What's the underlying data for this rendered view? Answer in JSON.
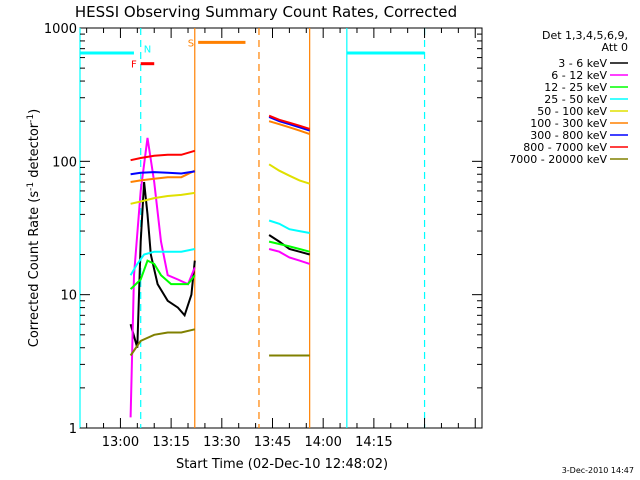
{
  "chart_data": {
    "type": "line",
    "title": "HESSI Observing Summary Count Rates, Corrected",
    "xlabel": "Start Time (02-Dec-10 12:48:02)",
    "ylabel_prefix": "Corrected Count Rate (s",
    "ylabel_sup1": "-1",
    "ylabel_mid": " detector",
    "ylabel_sup2": "-1",
    "ylabel_suffix": ")",
    "y_scale": "log",
    "ylim": [
      1,
      1000
    ],
    "y_ticks": [
      "1",
      "10",
      "100",
      "1000"
    ],
    "x_ticks": [
      "13:00",
      "13:15",
      "13:30",
      "13:45",
      "14:00",
      "14:15"
    ],
    "xlim": [
      "12:48:02",
      "14:47"
    ],
    "grid": false,
    "timestamp": "3-Dec-2010 14:47",
    "legend_header": [
      "Det 1,3,4,5,6,9,",
      "Att 0"
    ],
    "legend_placement": "right",
    "series": [
      {
        "name": "3 - 6 keV",
        "color": "#000000",
        "segments": [
          [
            [
              "13:03",
              6
            ],
            [
              "13:05",
              4
            ],
            [
              "13:06",
              25
            ],
            [
              "13:07",
              70
            ],
            [
              "13:08",
              40
            ],
            [
              "13:09",
              20
            ],
            [
              "13:11",
              12
            ],
            [
              "13:14",
              9
            ],
            [
              "13:17",
              8
            ],
            [
              "13:19",
              7
            ],
            [
              "13:21",
              10
            ],
            [
              "13:22",
              18
            ]
          ],
          [
            [
              "13:44",
              28
            ],
            [
              "13:47",
              25
            ],
            [
              "13:50",
              22
            ],
            [
              "13:53",
              21
            ],
            [
              "13:56",
              20
            ]
          ]
        ]
      },
      {
        "name": "6 - 12 keV",
        "color": "#ff00ff",
        "segments": [
          [
            [
              "13:03",
              1.2
            ],
            [
              "13:04",
              14
            ],
            [
              "13:06",
              60
            ],
            [
              "13:08",
              150
            ],
            [
              "13:10",
              70
            ],
            [
              "13:12",
              25
            ],
            [
              "13:14",
              14
            ],
            [
              "13:17",
              13
            ],
            [
              "13:20",
              12
            ],
            [
              "13:22",
              16
            ]
          ],
          [
            [
              "13:44",
              22
            ],
            [
              "13:47",
              21
            ],
            [
              "13:50",
              19
            ],
            [
              "13:53",
              18
            ],
            [
              "13:56",
              17
            ]
          ]
        ]
      },
      {
        "name": "12 - 25 keV",
        "color": "#00ff00",
        "segments": [
          [
            [
              "13:03",
              11
            ],
            [
              "13:06",
              13
            ],
            [
              "13:08",
              18
            ],
            [
              "13:10",
              17
            ],
            [
              "13:12",
              14
            ],
            [
              "13:15",
              12
            ],
            [
              "13:18",
              12
            ],
            [
              "13:20",
              12
            ],
            [
              "13:22",
              14
            ]
          ],
          [
            [
              "13:44",
              25
            ],
            [
              "13:47",
              24
            ],
            [
              "13:50",
              23
            ],
            [
              "13:53",
              22
            ],
            [
              "13:56",
              21
            ]
          ]
        ]
      },
      {
        "name": "25 - 50 keV",
        "color": "#00ffff",
        "segments": [
          [
            [
              "13:03",
              14
            ],
            [
              "13:05",
              17
            ],
            [
              "13:07",
              20
            ],
            [
              "13:10",
              21
            ],
            [
              "13:14",
              21
            ],
            [
              "13:18",
              21
            ],
            [
              "13:22",
              22
            ]
          ],
          [
            [
              "13:44",
              36
            ],
            [
              "13:47",
              34
            ],
            [
              "13:50",
              31
            ],
            [
              "13:53",
              30
            ],
            [
              "13:56",
              29
            ]
          ]
        ],
        "markers": [
          {
            "y": 650,
            "from": "12:48:02",
            "to": "13:04"
          },
          {
            "y": 650,
            "from": "14:07",
            "to": "14:30"
          }
        ],
        "vlines": [
          {
            "x": "12:48:02",
            "style": "solid"
          },
          {
            "x": "13:06",
            "style": "dashed"
          },
          {
            "x": "14:07",
            "style": "solid"
          },
          {
            "x": "14:30",
            "style": "dashed"
          }
        ]
      },
      {
        "name": "50 - 100 keV",
        "color": "#e0e000",
        "segments": [
          [
            [
              "13:03",
              48
            ],
            [
              "13:06",
              50
            ],
            [
              "13:10",
              53
            ],
            [
              "13:14",
              55
            ],
            [
              "13:18",
              56
            ],
            [
              "13:22",
              58
            ]
          ],
          [
            [
              "13:44",
              95
            ],
            [
              "13:47",
              85
            ],
            [
              "13:50",
              78
            ],
            [
              "13:53",
              72
            ],
            [
              "13:56",
              68
            ]
          ]
        ]
      },
      {
        "name": "100 - 300 keV",
        "color": "#ff8000",
        "segments": [
          [
            [
              "13:03",
              70
            ],
            [
              "13:06",
              72
            ],
            [
              "13:10",
              74
            ],
            [
              "13:14",
              76
            ],
            [
              "13:18",
              76
            ],
            [
              "13:22",
              85
            ]
          ],
          [
            [
              "13:44",
              200
            ],
            [
              "13:47",
              190
            ],
            [
              "13:50",
              180
            ],
            [
              "13:53",
              170
            ],
            [
              "13:56",
              160
            ]
          ]
        ],
        "markers": [
          {
            "y": 780,
            "from": "13:23",
            "to": "13:37",
            "label": "S"
          }
        ],
        "vlines": [
          {
            "x": "13:22",
            "style": "solid"
          },
          {
            "x": "13:41",
            "style": "dashed"
          },
          {
            "x": "13:56",
            "style": "solid"
          }
        ]
      },
      {
        "name": "300 - 800 keV",
        "color": "#0000ff",
        "segments": [
          [
            [
              "13:03",
              80
            ],
            [
              "13:06",
              82
            ],
            [
              "13:10",
              83
            ],
            [
              "13:14",
              82
            ],
            [
              "13:18",
              81
            ],
            [
              "13:22",
              84
            ]
          ],
          [
            [
              "13:44",
              215
            ],
            [
              "13:47",
              200
            ],
            [
              "13:50",
              190
            ],
            [
              "13:53",
              180
            ],
            [
              "13:56",
              170
            ]
          ]
        ]
      },
      {
        "name": "800 - 7000 keV",
        "color": "#ff0000",
        "segments": [
          [
            [
              "13:03",
              102
            ],
            [
              "13:06",
              106
            ],
            [
              "13:10",
              110
            ],
            [
              "13:14",
              112
            ],
            [
              "13:18",
              112
            ],
            [
              "13:22",
              120
            ]
          ],
          [
            [
              "13:44",
              220
            ],
            [
              "13:47",
              205
            ],
            [
              "13:50",
              195
            ],
            [
              "13:53",
              185
            ],
            [
              "13:56",
              175
            ]
          ]
        ],
        "markers": [
          {
            "y": 540,
            "from": "13:06",
            "to": "13:10",
            "label": "F"
          }
        ]
      },
      {
        "name": "7000 - 20000 keV",
        "color": "#808000",
        "segments": [
          [
            [
              "13:03",
              3.5
            ],
            [
              "13:06",
              4.5
            ],
            [
              "13:10",
              5
            ],
            [
              "13:14",
              5.2
            ],
            [
              "13:18",
              5.2
            ],
            [
              "13:22",
              5.5
            ]
          ],
          [
            [
              "13:44",
              3.5
            ],
            [
              "13:47",
              3.5
            ],
            [
              "13:50",
              3.5
            ],
            [
              "13:53",
              3.5
            ],
            [
              "13:56",
              3.5
            ]
          ]
        ]
      }
    ],
    "flags": [
      {
        "label": "N",
        "color": "#00ffff",
        "x": "13:08",
        "y": 700
      }
    ]
  }
}
